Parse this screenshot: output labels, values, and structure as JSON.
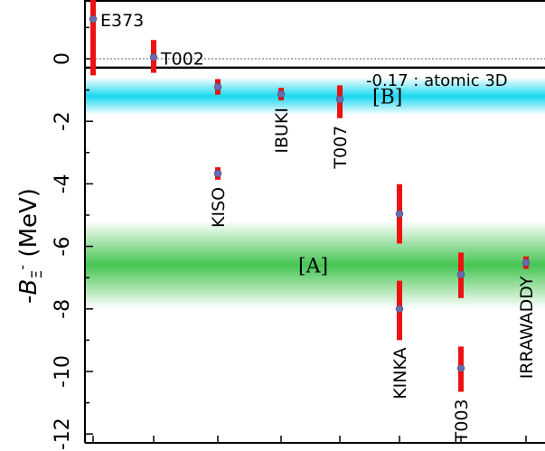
{
  "chart_data": {
    "type": "scatter",
    "ylabel": "-BΞ- (MeV)",
    "ylabel_parts": {
      "main": "-B",
      "sub": "Ξ",
      "sup": "-",
      "unit": " (MeV)"
    },
    "ylim": [
      -12.5,
      1.4
    ],
    "yticks": [
      0,
      -2,
      -4,
      -6,
      -8,
      -10,
      -12
    ],
    "ytick_labels": [
      "0",
      "-2",
      "-4",
      "-6",
      "-8",
      "-10",
      "-12"
    ],
    "reference_line": {
      "value": -0.17,
      "label": "-0.17 : atomic 3D"
    },
    "zero_line": 0,
    "bands": [
      {
        "name": "[B]",
        "low": -1.8,
        "high": -0.6,
        "color": "#18d8f0"
      },
      {
        "name": "[A]",
        "low": -8.0,
        "high": -5.2,
        "color": "#3cc24a"
      }
    ],
    "experiments": [
      {
        "label": "E373",
        "x": 1,
        "points": [
          {
            "y": 1.27,
            "err_up": 1.27,
            "err_down": 1.8
          }
        ],
        "label_pos": "right-top"
      },
      {
        "label": "T002",
        "x": 2,
        "points": [
          {
            "y": 0.05,
            "err_up": 0.55,
            "err_down": 0.5
          }
        ],
        "label_pos": "right-top"
      },
      {
        "label": "KISO",
        "x": 3,
        "points": [
          {
            "y": -0.9,
            "err_up": 0.25,
            "err_down": 0.25
          },
          {
            "y": -3.67,
            "err_up": 0.2,
            "err_down": 0.2
          }
        ],
        "label_pos": "vertical"
      },
      {
        "label": "IBUKI",
        "x": 4,
        "points": [
          {
            "y": -1.13,
            "err_up": 0.2,
            "err_down": 0.2
          }
        ],
        "label_pos": "vertical"
      },
      {
        "label": "T007",
        "x": 5,
        "points": [
          {
            "y": -1.3,
            "err_up": 0.45,
            "err_down": 0.6
          }
        ],
        "label_pos": "vertical"
      },
      {
        "label": "KINKA",
        "x": 6,
        "points": [
          {
            "y": -4.96,
            "err_up": 0.95,
            "err_down": 0.95
          },
          {
            "y": -8.0,
            "err_up": 0.9,
            "err_down": 1.0
          }
        ],
        "label_pos": "vertical"
      },
      {
        "label": "T003",
        "x": 7,
        "points": [
          {
            "y": -6.9,
            "err_up": 0.7,
            "err_down": 0.75
          },
          {
            "y": -9.9,
            "err_up": 0.7,
            "err_down": 0.75
          }
        ],
        "label_pos": "vertical"
      },
      {
        "label": "IRRAWADDY",
        "x": 8,
        "points": [
          {
            "y": -6.52,
            "err_up": 0.2,
            "err_down": 0.2
          }
        ],
        "label_pos": "vertical"
      }
    ],
    "colors": {
      "errorbar": "#ee1111",
      "marker": "#6a6ab0",
      "axis": "#000000"
    }
  }
}
